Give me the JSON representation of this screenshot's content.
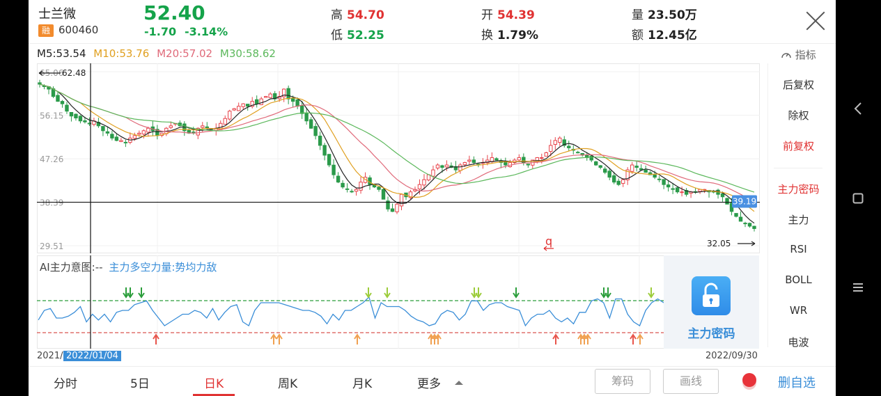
{
  "header": {
    "name": "士兰微",
    "badge": "融",
    "code": "600460",
    "price": "52.40",
    "change": "-1.70",
    "change_pct": "-3.14%",
    "stats": [
      {
        "key": "高",
        "value": "54.70",
        "color": "#e03232"
      },
      {
        "key": "低",
        "value": "52.25",
        "color": "#15a34a"
      },
      {
        "key": "开",
        "value": "54.39",
        "color": "#e03232"
      },
      {
        "key": "换",
        "value": "1.79%",
        "color": "#222222"
      },
      {
        "key": "量",
        "value": "23.50万",
        "color": "#222222"
      },
      {
        "key": "额",
        "value": "12.45亿",
        "color": "#222222"
      }
    ]
  },
  "ma_legend": [
    {
      "label": "M5:53.54",
      "color": "#222222"
    },
    {
      "label": "M10:53.76",
      "color": "#e0a020"
    },
    {
      "label": "M20:57.02",
      "color": "#e06a7a"
    },
    {
      "label": "M30:58.62",
      "color": "#5cb85c"
    }
  ],
  "indicator_label": "指标",
  "side_panel": {
    "items": [
      {
        "label": "后复权",
        "color": "#333333"
      },
      {
        "label": "除权",
        "color": "#333333"
      },
      {
        "label": "前复权",
        "color": "#e03232"
      },
      {
        "label": "主力密码",
        "color": "#e03232"
      },
      {
        "label": "主力",
        "color": "#333333"
      },
      {
        "label": "RSI",
        "color": "#333333"
      },
      {
        "label": "BOLL",
        "color": "#333333"
      },
      {
        "label": "WR",
        "color": "#333333"
      },
      {
        "label": "电波",
        "color": "#333333"
      }
    ]
  },
  "sub_chart": {
    "label_main": "AI主力意图:--",
    "label_sub": "主力多空力量:势均力敌",
    "lock_label": "主力密码"
  },
  "chart_data": {
    "type": "candlestick",
    "y_ticks": [
      "65.06",
      "56.15",
      "47.26",
      "38.39",
      "29.51"
    ],
    "ylim": [
      29.51,
      65.06
    ],
    "x_start": "2021/1",
    "x_end": "2022/09/30",
    "crosshair_date": "2022/01/04",
    "crosshair_price": "38.39",
    "current_price_tag": "39.19",
    "max_label": "62.48",
    "min_label": "32.05",
    "marker": "q",
    "close": [
      62.5,
      62,
      61.5,
      60,
      59,
      58.5,
      57,
      56,
      55.6,
      55,
      54.8,
      54.5,
      55,
      54,
      53,
      52.5,
      51.5,
      51,
      51,
      50.5,
      51.5,
      52,
      52.5,
      53,
      53.5,
      53,
      52,
      52.5,
      53.5,
      54,
      54.5,
      54,
      53,
      52.5,
      52.5,
      53.5,
      54,
      53.5,
      53,
      53.5,
      54.5,
      55.5,
      57,
      57.5,
      58,
      58.5,
      58,
      59,
      58.5,
      59.5,
      60,
      60.5,
      59.5,
      60,
      61.5,
      59.5,
      59,
      58,
      56.5,
      55,
      53.5,
      52,
      50,
      48,
      46,
      44,
      42.5,
      41.5,
      41,
      40.5,
      41,
      42.5,
      43.5,
      42,
      41.5,
      41,
      39,
      37,
      36.5,
      38,
      40,
      39.5,
      40.5,
      41,
      42,
      43,
      44,
      45,
      46,
      45.5,
      46,
      45.5,
      45,
      46,
      46.5,
      47,
      46.5,
      46,
      46.5,
      47,
      47.5,
      47,
      46.5,
      46,
      46.5,
      47,
      47.5,
      46.5,
      46,
      47,
      47.5,
      47.5,
      48.5,
      50,
      51,
      51.5,
      50,
      49.5,
      49,
      48.5,
      48,
      47.5,
      47,
      46,
      45.5,
      44.5,
      43.5,
      42.5,
      42,
      43,
      45,
      46,
      45.5,
      45,
      44.5,
      44,
      43.5,
      43,
      42,
      41.5,
      41,
      40.5,
      40.5,
      40,
      40.5,
      40.5,
      41,
      41,
      40.5,
      40.5,
      40,
      39.5,
      38,
      36.5,
      35.5,
      34.5,
      34,
      33.5,
      33
    ],
    "ma_lines": [
      "M5",
      "M10",
      "M20",
      "M30"
    ],
    "sub_indicator": [
      0.35,
      0.6,
      0.65,
      0.4,
      0.4,
      0.45,
      0.55,
      0.7,
      0.3,
      0.5,
      0.35,
      0.5,
      0.3,
      0.55,
      0.6,
      0.6,
      0.75,
      0.8,
      0.85,
      0.6,
      0.4,
      0.2,
      0.3,
      0.4,
      0.5,
      0.5,
      0.6,
      0.55,
      0.4,
      0.65,
      0.35,
      0.55,
      0.7,
      0.75,
      0.3,
      0.2,
      0.6,
      0.8,
      0.8,
      0.8,
      0.8,
      0.75,
      0.7,
      0.65,
      0.6,
      0.6,
      0.55,
      0.45,
      0.25,
      0.5,
      0.35,
      0.6,
      0.6,
      0.7,
      0.8,
      0.95,
      0.4,
      0.8,
      0.7,
      0.7,
      0.7,
      0.6,
      0.45,
      0.35,
      0.3,
      0.2,
      0.25,
      0.5,
      0.6,
      0.55,
      0.35,
      0.5,
      0.85,
      0.85,
      0.6,
      0.75,
      0.8,
      0.8,
      0.7,
      0.65,
      0.6,
      0.2,
      0.4,
      0.5,
      0.5,
      0.6,
      0.4,
      0.3,
      0.4,
      0.25,
      0.55,
      0.55,
      0.85,
      0.9,
      0.8,
      0.4,
      0.9,
      0.9,
      0.5,
      0.3,
      0.2,
      0.6,
      0.8,
      0.9,
      0.8
    ]
  },
  "tabs": [
    {
      "label": "分时",
      "active": false
    },
    {
      "label": "5日",
      "active": false
    },
    {
      "label": "日K",
      "active": true
    },
    {
      "label": "周K",
      "active": false
    },
    {
      "label": "月K",
      "active": false
    },
    {
      "label": "更多",
      "active": false
    }
  ],
  "buttons": {
    "chips": "筹码",
    "draw": "画线",
    "remove_watch": "删自选"
  }
}
